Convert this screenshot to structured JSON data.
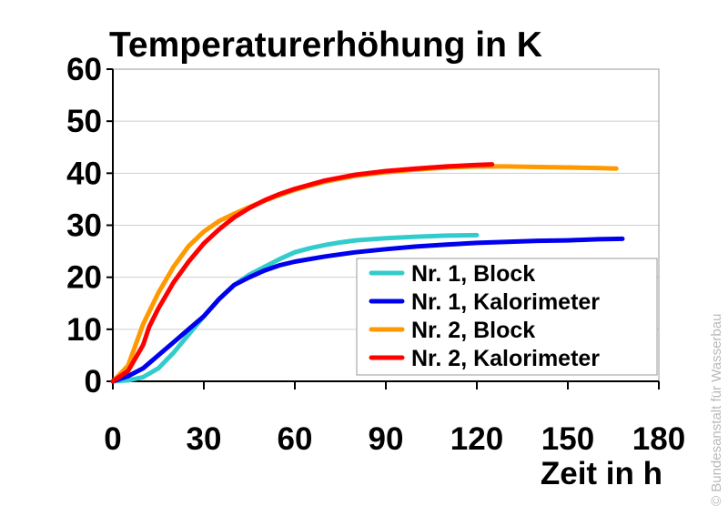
{
  "chart_data": {
    "type": "line",
    "title": "Temperaturerhöhung in K",
    "xlabel": "Zeit in h",
    "ylabel": "",
    "xlim": [
      0,
      180
    ],
    "ylim": [
      0,
      60
    ],
    "xticks": [
      0,
      30,
      60,
      90,
      120,
      150,
      180
    ],
    "yticks": [
      0,
      10,
      20,
      30,
      40,
      50,
      60
    ],
    "grid": "horizontal",
    "legend_position": "bottom-right",
    "series": [
      {
        "name": "Nr. 1, Block",
        "color": "#33cccc",
        "x": [
          0,
          5,
          10,
          15,
          20,
          25,
          30,
          35,
          40,
          45,
          50,
          55,
          60,
          65,
          70,
          75,
          80,
          90,
          100,
          110,
          120
        ],
        "y": [
          0,
          0.2,
          0.8,
          2.5,
          5.5,
          9,
          12.5,
          15.8,
          18.5,
          20.5,
          22,
          23.5,
          24.8,
          25.6,
          26.2,
          26.7,
          27.1,
          27.5,
          27.8,
          28,
          28.1
        ]
      },
      {
        "name": "Nr. 1, Kalorimeter",
        "color": "#0000ee",
        "x": [
          0,
          5,
          10,
          15,
          20,
          25,
          30,
          35,
          40,
          45,
          50,
          55,
          60,
          70,
          80,
          90,
          100,
          110,
          120,
          130,
          140,
          150,
          160,
          168
        ],
        "y": [
          0,
          1,
          2.5,
          5,
          7.5,
          10,
          12.5,
          15.8,
          18.5,
          20,
          21.3,
          22.3,
          23,
          24,
          24.8,
          25.4,
          25.9,
          26.3,
          26.6,
          26.8,
          27,
          27.1,
          27.3,
          27.4
        ]
      },
      {
        "name": "Nr. 2, Block",
        "color": "#ff9900",
        "x": [
          0,
          5,
          10,
          15,
          20,
          25,
          30,
          35,
          40,
          45,
          50,
          55,
          60,
          70,
          80,
          90,
          100,
          110,
          120,
          130,
          140,
          150,
          160,
          166
        ],
        "y": [
          0,
          3,
          11,
          17,
          22,
          26,
          28.8,
          30.8,
          32.2,
          33.5,
          34.7,
          35.8,
          36.8,
          38.4,
          39.5,
          40.2,
          40.7,
          41.1,
          41.3,
          41.3,
          41.2,
          41.1,
          41,
          40.9
        ]
      },
      {
        "name": "Nr. 2, Kalorimeter",
        "color": "#ff0000",
        "x": [
          0,
          5,
          10,
          12,
          15,
          20,
          25,
          30,
          35,
          40,
          45,
          50,
          55,
          60,
          70,
          80,
          90,
          100,
          110,
          120,
          125
        ],
        "y": [
          0,
          2,
          7,
          10.5,
          14,
          19,
          23,
          26.5,
          29.2,
          31.5,
          33.3,
          34.8,
          36,
          37,
          38.6,
          39.7,
          40.4,
          40.9,
          41.3,
          41.6,
          41.7
        ]
      }
    ]
  },
  "credit": "© Bundesanstalt für Wasserbau"
}
